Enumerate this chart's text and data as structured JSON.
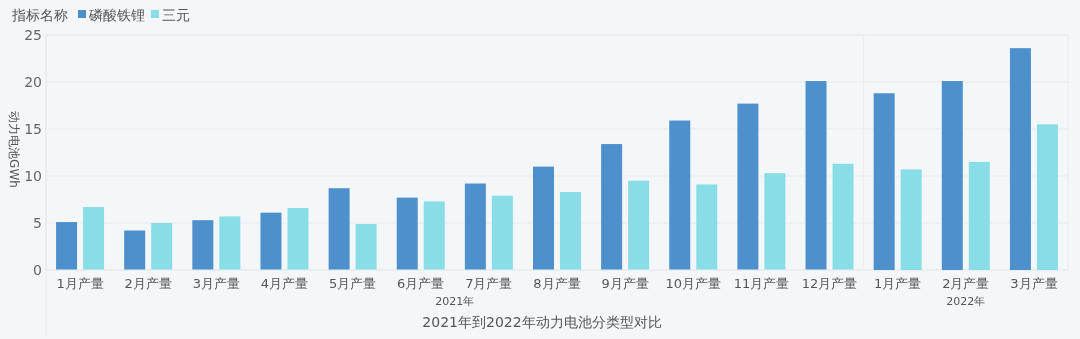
{
  "chart_data": {
    "type": "bar",
    "xlabel": "2021年到2022年动力电池分类型对比",
    "ylabel": "动力电池GWh",
    "legend_title": "指标名称",
    "legend": "top left",
    "grid": "y",
    "categories": [
      "1月产量",
      "2月产量",
      "3月产量",
      "4月产量",
      "5月产量",
      "6月产量",
      "7月产量",
      "8月产量",
      "9月产量",
      "10月产量",
      "11月产量",
      "12月产量",
      "1月产量",
      "2月产量",
      "3月产量"
    ],
    "series": [
      {
        "name": "磷酸铁锂",
        "color": "#4e90cc",
        "values": [
          5.1,
          4.2,
          5.3,
          6.1,
          8.7,
          7.7,
          9.2,
          11.0,
          13.4,
          15.9,
          17.7,
          20.1,
          18.8,
          20.1,
          23.6
        ]
      },
      {
        "name": "三元",
        "color": "#88dde6",
        "values": [
          6.7,
          5.0,
          5.7,
          6.6,
          4.9,
          7.3,
          7.9,
          8.3,
          9.5,
          9.1,
          10.3,
          11.3,
          10.7,
          11.5,
          15.5
        ]
      }
    ],
    "ylim": [
      0,
      25
    ],
    "yticks": [
      0,
      5,
      10,
      15,
      20,
      25
    ],
    "annotations": [
      "2021年",
      "2022年"
    ]
  }
}
